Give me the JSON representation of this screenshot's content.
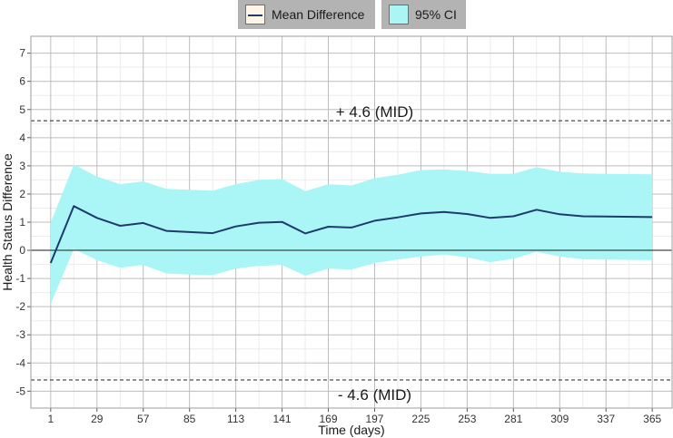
{
  "legend": {
    "mean_label": "Mean Difference",
    "ci_label": "95% CI"
  },
  "colors": {
    "mean_line": "#1f3a6e",
    "ci_fill": "#aaf5f5",
    "grid_major": "#bdbdbd",
    "grid_minor": "#ececec",
    "zero_line": "#1a1a1a",
    "text": "#333333"
  },
  "chart_data": {
    "type": "line",
    "xlabel": "Time (days)",
    "ylabel": "Health Status Difference",
    "xlim": [
      -11,
      377
    ],
    "ylim": [
      -5.6,
      7.6
    ],
    "xticks": [
      1,
      29,
      57,
      85,
      113,
      141,
      169,
      197,
      225,
      253,
      281,
      309,
      337,
      365
    ],
    "yticks": [
      -5,
      -4,
      -3,
      -2,
      -1,
      0,
      1,
      2,
      3,
      4,
      5,
      6,
      7
    ],
    "grid": true,
    "legend_position": "top",
    "series": [
      {
        "name": "Mean Difference",
        "x": [
          1,
          15,
          29,
          43,
          57,
          71,
          85,
          99,
          113,
          127,
          141,
          155,
          169,
          183,
          197,
          211,
          225,
          239,
          253,
          267,
          281,
          295,
          309,
          323,
          337,
          365
        ],
        "values": [
          -0.45,
          1.57,
          1.15,
          0.87,
          0.97,
          0.69,
          0.65,
          0.61,
          0.85,
          0.98,
          1.01,
          0.6,
          0.84,
          0.81,
          1.05,
          1.17,
          1.31,
          1.36,
          1.29,
          1.15,
          1.21,
          1.44,
          1.28,
          1.21,
          1.2,
          1.18
        ]
      },
      {
        "name": "95% CI",
        "x": [
          1,
          15,
          29,
          43,
          57,
          71,
          85,
          99,
          113,
          127,
          141,
          155,
          169,
          183,
          197,
          211,
          225,
          239,
          253,
          267,
          281,
          295,
          309,
          323,
          337,
          365
        ],
        "lower": [
          -1.9,
          0.05,
          -0.35,
          -0.62,
          -0.52,
          -0.82,
          -0.86,
          -0.88,
          -0.65,
          -0.55,
          -0.52,
          -0.9,
          -0.65,
          -0.68,
          -0.45,
          -0.33,
          -0.22,
          -0.15,
          -0.25,
          -0.42,
          -0.3,
          -0.05,
          -0.22,
          -0.32,
          -0.33,
          -0.35
        ],
        "upper": [
          0.98,
          3.05,
          2.62,
          2.35,
          2.45,
          2.18,
          2.15,
          2.12,
          2.35,
          2.5,
          2.53,
          2.1,
          2.35,
          2.3,
          2.56,
          2.68,
          2.85,
          2.87,
          2.82,
          2.72,
          2.72,
          2.95,
          2.79,
          2.73,
          2.72,
          2.7
        ]
      }
    ],
    "reference_lines": [
      {
        "y": 4.6,
        "label": "+ 4.6 (MID)",
        "style": "dashed"
      },
      {
        "y": -4.6,
        "label": "- 4.6 (MID)",
        "style": "dashed"
      },
      {
        "y": 0,
        "label": "",
        "style": "solid"
      }
    ]
  }
}
